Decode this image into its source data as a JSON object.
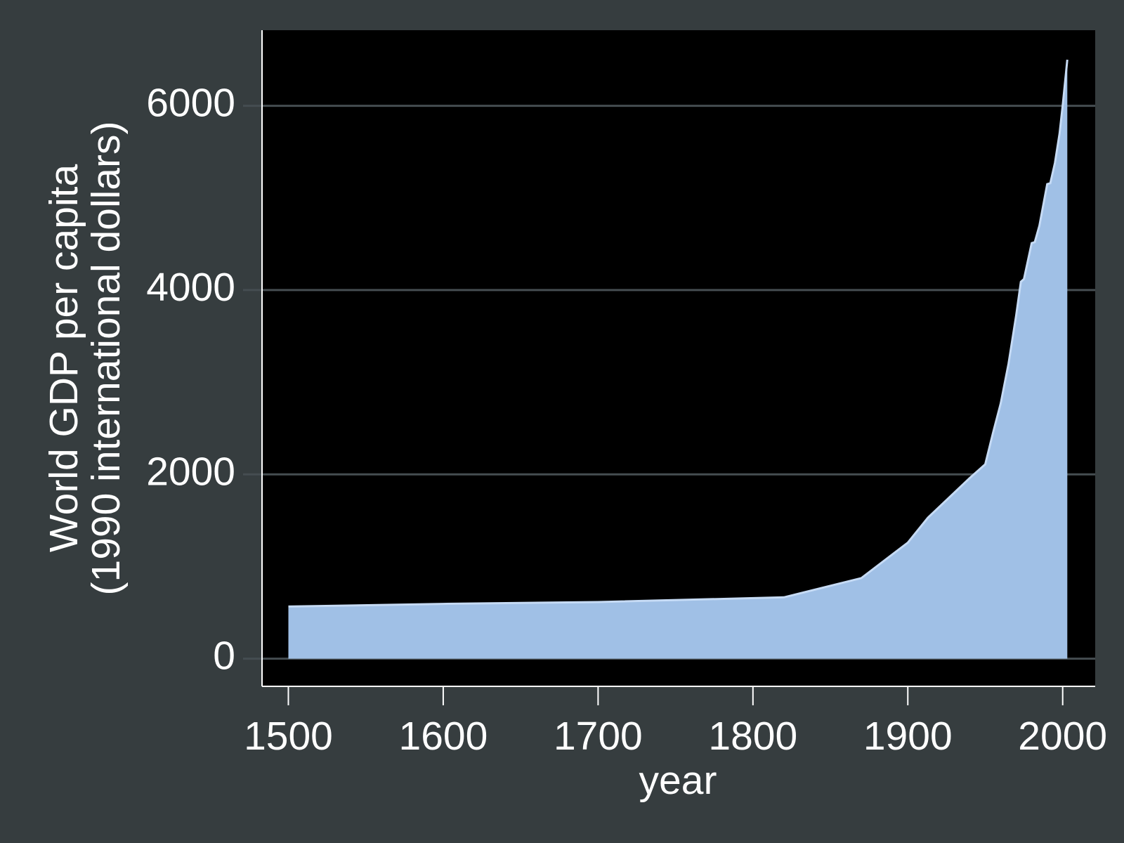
{
  "chart_data": {
    "type": "area",
    "xlabel": "year",
    "ylabel": [
      "World GDP per capita",
      "(1990 international dollars)"
    ],
    "x": [
      1500,
      1600,
      1700,
      1820,
      1870,
      1900,
      1913,
      1940,
      1950,
      1955,
      1960,
      1965,
      1970,
      1973,
      1975,
      1980,
      1982,
      1985,
      1990,
      1992,
      1995,
      1998,
      2000,
      2003
    ],
    "values": [
      566,
      595,
      615,
      666,
      875,
      1260,
      1530,
      1960,
      2110,
      2450,
      2770,
      3200,
      3730,
      4090,
      4120,
      4510,
      4520,
      4700,
      5150,
      5160,
      5380,
      5700,
      6000,
      6500
    ],
    "color": "#a0c0e6",
    "line_color": "#c6dbf5",
    "xlim": [
      1483,
      2021
    ],
    "xticks": [
      1500,
      1600,
      1700,
      1800,
      1900,
      2000
    ],
    "ylim": [
      -300,
      6820
    ],
    "yticks": [
      0,
      2000,
      4000,
      6000
    ],
    "grid": true
  }
}
